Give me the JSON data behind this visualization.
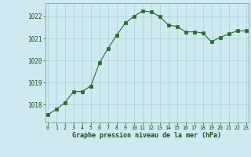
{
  "x": [
    0,
    1,
    2,
    3,
    4,
    5,
    6,
    7,
    8,
    9,
    10,
    11,
    12,
    13,
    14,
    15,
    16,
    17,
    18,
    19,
    20,
    21,
    22,
    23
  ],
  "y": [
    1017.55,
    1017.8,
    1018.1,
    1018.6,
    1018.6,
    1018.85,
    1019.9,
    1020.55,
    1021.15,
    1021.7,
    1022.0,
    1022.25,
    1022.2,
    1022.0,
    1021.6,
    1021.55,
    1021.3,
    1021.3,
    1021.25,
    1020.85,
    1021.05,
    1021.2,
    1021.35,
    1021.35
  ],
  "line_color": "#2d6a2d",
  "marker": "s",
  "marker_size": 2.2,
  "bg_color": "#ceeaf0",
  "grid_color": "#aed4dc",
  "xlabel": "Graphe pression niveau de la mer (hPa)",
  "xlabel_color": "#1a4a1a",
  "tick_color": "#1a4a1a",
  "ylim": [
    1017.2,
    1022.6
  ],
  "yticks": [
    1018,
    1019,
    1020,
    1021,
    1022
  ],
  "xticks": [
    0,
    1,
    2,
    3,
    4,
    5,
    6,
    7,
    8,
    9,
    10,
    11,
    12,
    13,
    14,
    15,
    16,
    17,
    18,
    19,
    20,
    21,
    22,
    23
  ],
  "xlim": [
    -0.3,
    23.3
  ]
}
